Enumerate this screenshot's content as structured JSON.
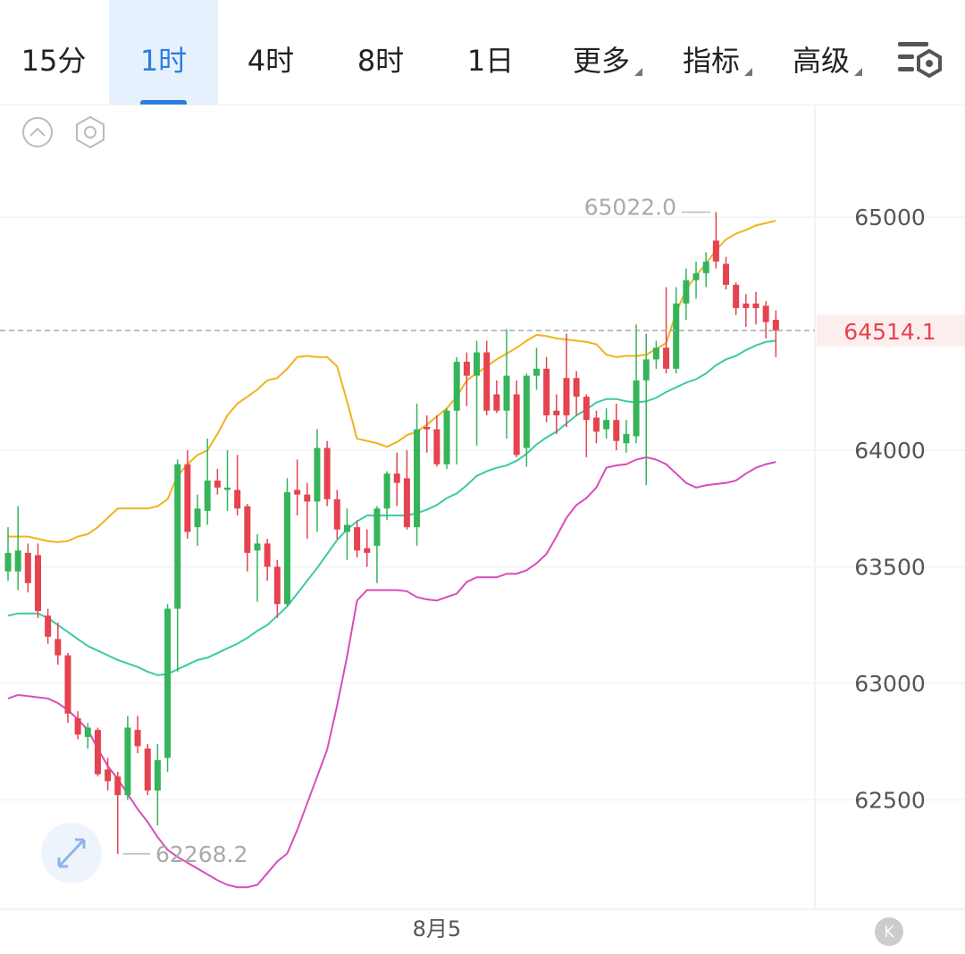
{
  "tabs": [
    "15分",
    "1时",
    "4时",
    "8时",
    "1日",
    "更多",
    "指标",
    "高级"
  ],
  "chart_data": {
    "type": "candlestick",
    "up_color": "#35b45a",
    "down_color": "#e5434f",
    "categories": [
      null,
      null,
      null,
      null,
      null,
      null,
      null,
      null,
      null,
      null,
      null,
      null,
      null,
      null,
      null,
      null,
      null,
      null,
      null,
      null,
      null,
      null,
      null,
      null,
      null,
      null,
      null,
      null,
      null,
      null,
      null,
      null,
      null,
      null,
      null,
      null,
      null,
      null,
      null,
      null,
      null,
      null,
      null,
      "8月5",
      null,
      null,
      null,
      null,
      null,
      null,
      null,
      null,
      null,
      null,
      null,
      null,
      null,
      null,
      null,
      null,
      null,
      null,
      null,
      null,
      null,
      null,
      null,
      null,
      null,
      null,
      null,
      null,
      null,
      null,
      null,
      null,
      null,
      null
    ],
    "open": [
      63480,
      63480,
      63560,
      63550,
      63290,
      63190,
      63120,
      62850,
      62770,
      62800,
      62630,
      62600,
      62520,
      62800,
      62720,
      62540,
      62680,
      63320,
      63940,
      63670,
      63740,
      63870,
      63830,
      63830,
      63760,
      63570,
      63600,
      63500,
      63340,
      63830,
      63810,
      63780,
      64010,
      63790,
      63650,
      63670,
      63580,
      63590,
      63750,
      63900,
      63880,
      63670,
      64100,
      64090,
      63940,
      64170,
      64380,
      64320,
      64420,
      64240,
      64170,
      64240,
      64010,
      64320,
      64350,
      64170,
      64310,
      64310,
      64230,
      64140,
      64090,
      64130,
      64030,
      64060,
      64300,
      64390,
      64440,
      64350,
      64630,
      64730,
      64760,
      64900,
      64800,
      64710,
      64630,
      64630,
      64620,
      64560
    ],
    "high": [
      63670,
      63760,
      63600,
      63600,
      63320,
      63260,
      63130,
      62880,
      62830,
      62810,
      62680,
      62620,
      62860,
      62860,
      62740,
      62740,
      63340,
      63960,
      64000,
      63810,
      64050,
      63920,
      64000,
      63980,
      63770,
      63640,
      63620,
      63530,
      63880,
      63960,
      63860,
      64090,
      64040,
      63830,
      63750,
      63700,
      63660,
      63760,
      63910,
      63990,
      64000,
      64200,
      64150,
      64150,
      64180,
      64400,
      64420,
      64470,
      64470,
      64300,
      64520,
      64300,
      64330,
      64440,
      64400,
      64240,
      64500,
      64340,
      64240,
      64170,
      64180,
      64200,
      64130,
      64540,
      64500,
      64470,
      64700,
      64700,
      64780,
      64810,
      64850,
      65022,
      64830,
      64720,
      64670,
      64680,
      64640,
      64600
    ],
    "low": [
      63440,
      63400,
      63390,
      63280,
      63170,
      63080,
      62830,
      62760,
      62720,
      62600,
      62540,
      62268.2,
      62500,
      62700,
      62520,
      62390,
      62620,
      63050,
      63620,
      63590,
      63680,
      63810,
      63740,
      63720,
      63480,
      63350,
      63440,
      63280,
      63330,
      63720,
      63620,
      63650,
      63760,
      63620,
      63530,
      63540,
      63500,
      63430,
      63700,
      63760,
      63660,
      63590,
      63990,
      63930,
      63920,
      63940,
      64190,
      64020,
      64150,
      64160,
      64050,
      63970,
      63930,
      64260,
      64120,
      64070,
      64100,
      64150,
      63970,
      64030,
      64050,
      64000,
      63990,
      64030,
      63850,
      64350,
      64330,
      64330,
      64560,
      64650,
      64700,
      64780,
      64690,
      64580,
      64530,
      64540,
      64480,
      64400
    ],
    "close": [
      63560,
      63570,
      63430,
      63310,
      63200,
      63120,
      62870,
      62780,
      62810,
      62610,
      62580,
      62520,
      62810,
      62730,
      62540,
      62670,
      63320,
      63940,
      63650,
      63750,
      63870,
      63840,
      63840,
      63750,
      63560,
      63600,
      63500,
      63340,
      63820,
      63810,
      63780,
      64010,
      63790,
      63660,
      63680,
      63570,
      63560,
      63750,
      63900,
      63860,
      63670,
      64090,
      64090,
      63940,
      64170,
      64380,
      64320,
      64420,
      64170,
      64170,
      64320,
      63980,
      64320,
      64350,
      64150,
      64150,
      64150,
      64230,
      64130,
      64080,
      64130,
      64040,
      64070,
      64300,
      64390,
      64440,
      64350,
      64630,
      64730,
      64760,
      64810,
      64810,
      64710,
      64610,
      64610,
      64610,
      64550,
      64514.1
    ],
    "bands": [
      {
        "color": "#f0b31c",
        "values": [
          63630,
          63630,
          63630,
          63620,
          63610,
          63606,
          63610,
          63630,
          63640,
          63670,
          63710,
          63750,
          63750,
          63750,
          63750,
          63760,
          63790,
          63890,
          63940,
          63980,
          64000,
          64070,
          64150,
          64200,
          64230,
          64260,
          64300,
          64310,
          64350,
          64400,
          64405,
          64400,
          64400,
          64360,
          64210,
          64050,
          64040,
          64030,
          64015,
          64035,
          64065,
          64080,
          64110,
          64145,
          64180,
          64230,
          64300,
          64330,
          64360,
          64390,
          64415,
          64440,
          64470,
          64495,
          64490,
          64480,
          64475,
          64470,
          64465,
          64455,
          64410,
          64400,
          64405,
          64405,
          64410,
          64435,
          64460,
          64590,
          64690,
          64750,
          64800,
          64860,
          64905,
          64930,
          64945,
          64965,
          64975,
          64985
        ]
      },
      {
        "color": "#3cc9a6",
        "values": [
          63290,
          63300,
          63300,
          63300,
          63280,
          63250,
          63220,
          63190,
          63160,
          63140,
          63120,
          63100,
          63085,
          63070,
          63050,
          63035,
          63040,
          63060,
          63080,
          63100,
          63110,
          63130,
          63150,
          63170,
          63195,
          63225,
          63250,
          63290,
          63330,
          63385,
          63440,
          63495,
          63555,
          63615,
          63660,
          63695,
          63720,
          63720,
          63720,
          63720,
          63720,
          63730,
          63745,
          63765,
          63795,
          63815,
          63850,
          63890,
          63910,
          63925,
          63935,
          63955,
          63985,
          64025,
          64055,
          64080,
          64115,
          64150,
          64175,
          64205,
          64220,
          64220,
          64210,
          64205,
          64210,
          64225,
          64250,
          64270,
          64290,
          64305,
          64330,
          64365,
          64390,
          64405,
          64430,
          64450,
          64465,
          64470
        ]
      },
      {
        "color": "#d84db8",
        "values": [
          62935,
          62950,
          62945,
          62940,
          62935,
          62915,
          62885,
          62845,
          62800,
          62720,
          62645,
          62590,
          62525,
          62460,
          62405,
          62340,
          62285,
          62255,
          62230,
          62205,
          62180,
          62155,
          62135,
          62125,
          62125,
          62135,
          62185,
          62235,
          62270,
          62370,
          62485,
          62600,
          62715,
          62905,
          63115,
          63355,
          63400,
          63400,
          63400,
          63400,
          63395,
          63370,
          63360,
          63355,
          63370,
          63385,
          63435,
          63455,
          63455,
          63455,
          63470,
          63470,
          63485,
          63515,
          63555,
          63630,
          63710,
          63765,
          63795,
          63840,
          63925,
          63935,
          63940,
          63960,
          63970,
          63960,
          63940,
          63900,
          63860,
          63840,
          63850,
          63855,
          63860,
          63870,
          63900,
          63925,
          63940,
          63950
        ]
      }
    ],
    "ylim": [
      62030,
      65480
    ],
    "yticks": [
      62500,
      63000,
      63500,
      64000,
      65000
    ],
    "grid": true,
    "annotations": {
      "high": {
        "value": 65022,
        "label": "65022.0"
      },
      "low": {
        "value": 62268.2,
        "label": "62268.2"
      },
      "last": {
        "value": 64514.1,
        "label": "64514.1"
      }
    }
  }
}
